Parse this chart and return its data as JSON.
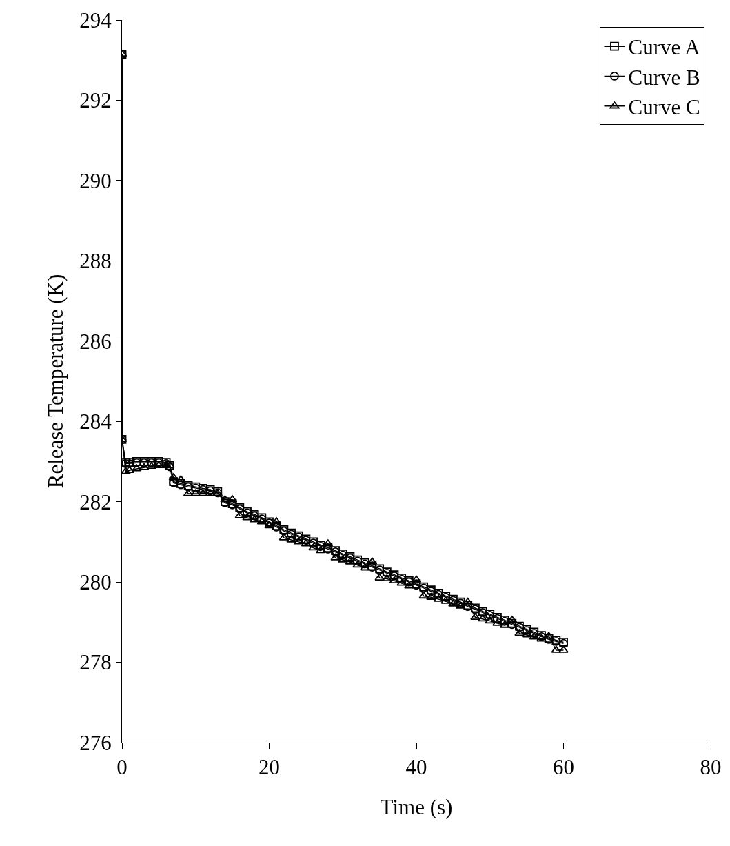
{
  "chart_data": {
    "type": "line",
    "xlabel": "Time (s)",
    "ylabel": "Release Temperature (K)",
    "x": [
      0,
      0,
      0.5,
      1,
      2,
      3,
      4,
      5,
      6,
      6.5,
      7,
      8,
      9,
      10,
      11,
      12,
      13,
      14,
      15,
      16,
      17,
      18,
      19,
      20,
      21,
      22,
      23,
      24,
      25,
      26,
      27,
      28,
      29,
      30,
      31,
      32,
      33,
      34,
      35,
      36,
      37,
      38,
      39,
      40,
      41,
      42,
      43,
      44,
      45,
      46,
      47,
      48,
      49,
      50,
      51,
      52,
      53,
      54,
      55,
      56,
      57,
      58,
      59,
      60
    ],
    "series": [
      {
        "name": "Curve A",
        "color": "#000000",
        "marker": "square",
        "values": [
          293.15,
          283.55,
          282.98,
          282.98,
          283.0,
          283.0,
          283.0,
          283.0,
          282.98,
          282.9,
          282.5,
          282.45,
          282.4,
          282.37,
          282.33,
          282.3,
          282.25,
          282.0,
          281.95,
          281.85,
          281.75,
          281.68,
          281.6,
          281.5,
          281.4,
          281.3,
          281.22,
          281.15,
          281.07,
          281.0,
          280.92,
          280.85,
          280.78,
          280.7,
          280.63,
          280.55,
          280.48,
          280.4,
          280.33,
          280.25,
          280.18,
          280.1,
          280.03,
          279.95,
          279.88,
          279.8,
          279.72,
          279.65,
          279.57,
          279.5,
          279.42,
          279.35,
          279.27,
          279.2,
          279.12,
          279.05,
          278.97,
          278.9,
          278.82,
          278.75,
          278.67,
          278.6,
          278.55,
          278.5
        ]
      },
      {
        "name": "Curve B",
        "color": "#000000",
        "marker": "circle",
        "values": [
          293.15,
          283.55,
          282.95,
          282.95,
          282.97,
          282.97,
          282.97,
          282.97,
          282.95,
          282.87,
          282.47,
          282.42,
          282.37,
          282.34,
          282.3,
          282.27,
          282.22,
          281.97,
          281.92,
          281.82,
          281.72,
          281.65,
          281.57,
          281.47,
          281.37,
          281.27,
          281.19,
          281.12,
          281.04,
          280.97,
          280.89,
          280.82,
          280.75,
          280.67,
          280.6,
          280.52,
          280.45,
          280.37,
          280.3,
          280.22,
          280.15,
          280.07,
          280.0,
          279.92,
          279.85,
          279.77,
          279.69,
          279.62,
          279.54,
          279.47,
          279.39,
          279.32,
          279.24,
          279.17,
          279.09,
          279.02,
          278.94,
          278.87,
          278.79,
          278.72,
          278.64,
          278.57,
          278.52,
          278.47
        ]
      },
      {
        "name": "Curve C",
        "color": "#000000",
        "marker": "triangle",
        "values": [
          293.15,
          283.55,
          282.75,
          282.78,
          282.82,
          282.85,
          282.88,
          282.9,
          282.9,
          282.9,
          282.6,
          282.55,
          282.2,
          282.2,
          282.2,
          282.2,
          282.2,
          282.05,
          282.05,
          281.65,
          281.6,
          281.55,
          281.5,
          281.4,
          281.5,
          281.1,
          281.05,
          281.0,
          280.95,
          280.85,
          280.78,
          280.95,
          280.6,
          280.55,
          280.5,
          280.42,
          280.35,
          280.5,
          280.1,
          280.08,
          280.03,
          279.97,
          279.9,
          280.05,
          279.65,
          279.62,
          279.57,
          279.52,
          279.45,
          279.4,
          279.5,
          279.12,
          279.08,
          279.03,
          278.97,
          278.92,
          279.05,
          278.72,
          278.68,
          278.63,
          278.58,
          278.65,
          278.3,
          278.3
        ]
      }
    ],
    "xlim": [
      0,
      80
    ],
    "xticks": [
      0,
      20,
      40,
      60,
      80
    ],
    "ylim": [
      276,
      294
    ],
    "yticks": [
      276,
      278,
      280,
      282,
      284,
      286,
      288,
      290,
      292,
      294
    ],
    "grid": false,
    "legend": "top right",
    "line_style": "solid"
  }
}
